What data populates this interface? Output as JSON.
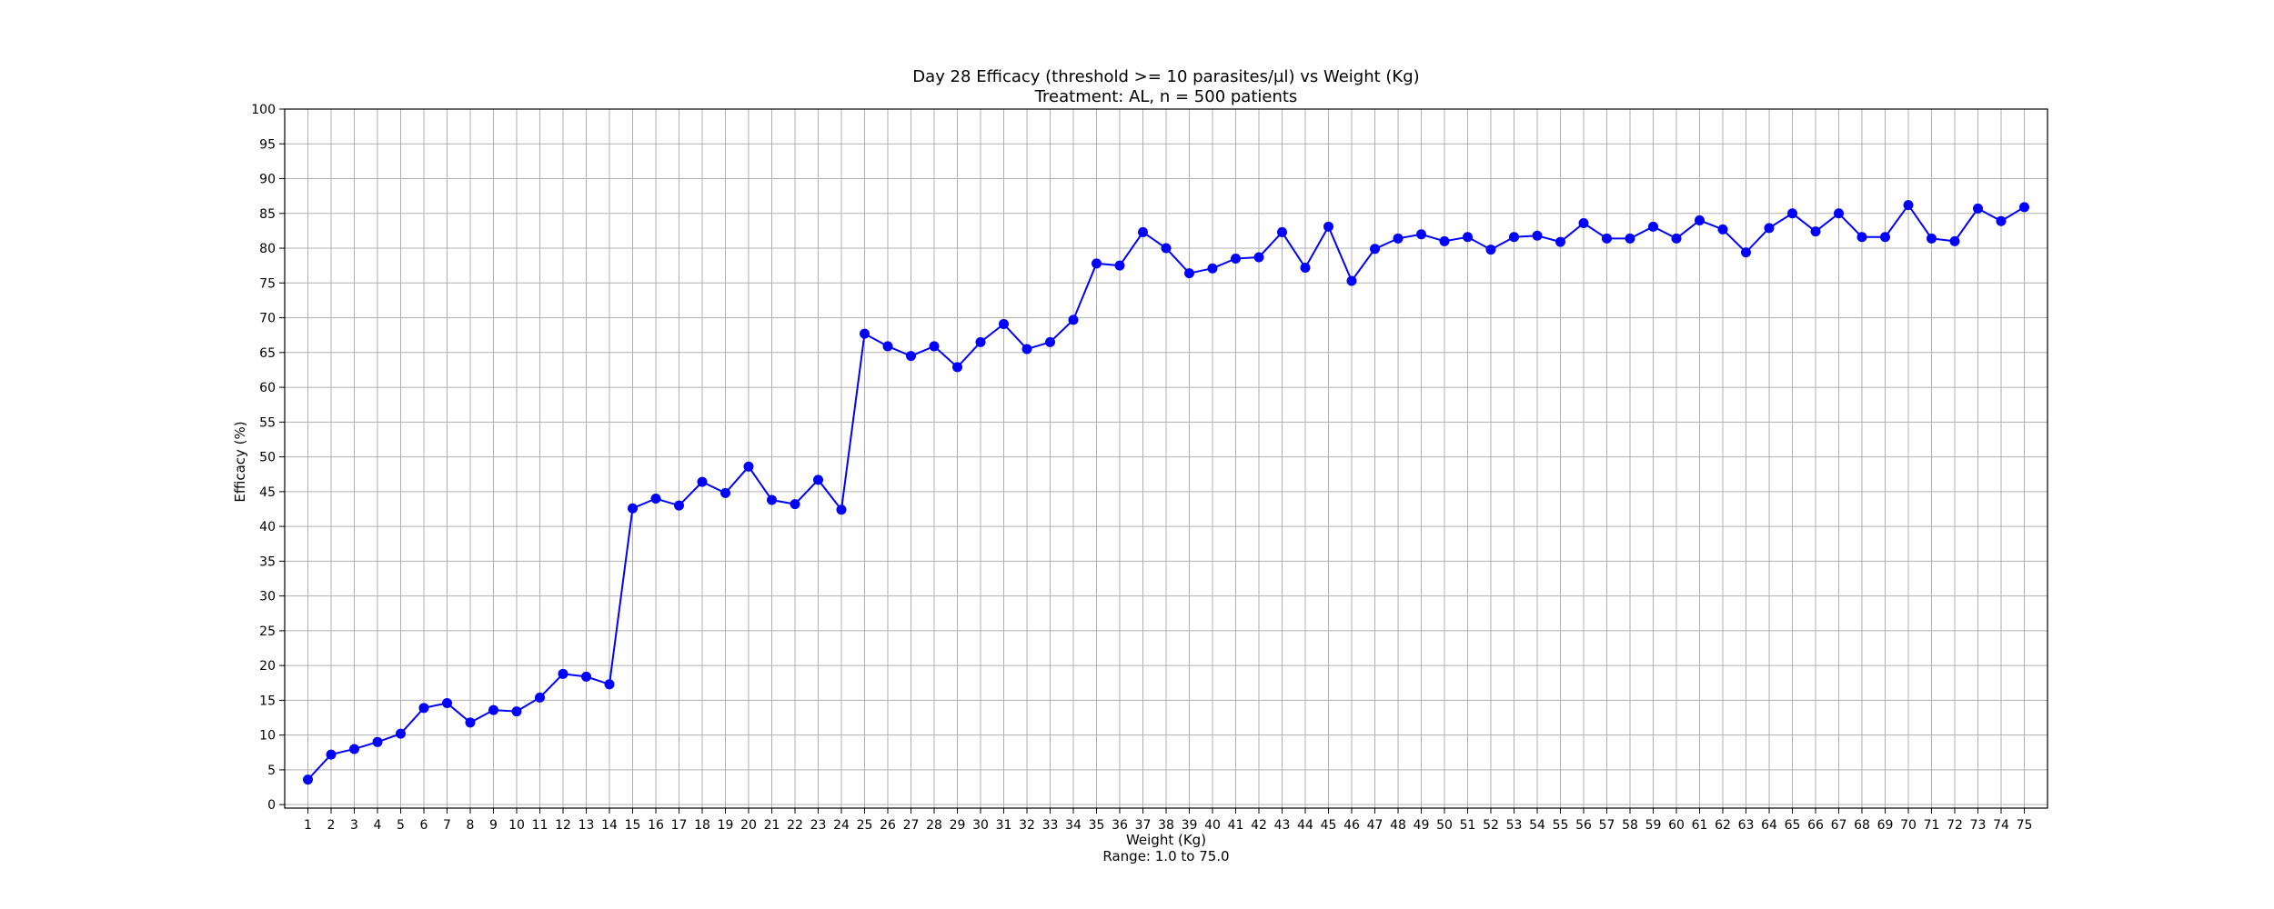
{
  "chart_data": {
    "type": "line",
    "title": "Day 28 Efficacy (threshold >= 10 parasites/µl) vs Weight (Kg)",
    "subtitle": "Treatment: AL, n = 500 patients",
    "xlabel": "Weight (Kg)",
    "xlabel_note": "Range: 1.0 to 75.0",
    "ylabel": "Efficacy (%)",
    "xlim": [
      0,
      76
    ],
    "ylim": [
      -0.5,
      100
    ],
    "x_ticks": [
      1,
      2,
      3,
      4,
      5,
      6,
      7,
      8,
      9,
      10,
      11,
      12,
      13,
      14,
      15,
      16,
      17,
      18,
      19,
      20,
      21,
      22,
      23,
      24,
      25,
      26,
      27,
      28,
      29,
      30,
      31,
      32,
      33,
      34,
      35,
      36,
      37,
      38,
      39,
      40,
      41,
      42,
      43,
      44,
      45,
      46,
      47,
      48,
      49,
      50,
      51,
      52,
      53,
      54,
      55,
      56,
      57,
      58,
      59,
      60,
      61,
      62,
      63,
      64,
      65,
      66,
      67,
      68,
      69,
      70,
      71,
      72,
      73,
      74,
      75
    ],
    "y_ticks": [
      0,
      5,
      10,
      15,
      20,
      25,
      30,
      35,
      40,
      45,
      50,
      55,
      60,
      65,
      70,
      75,
      80,
      85,
      90,
      95,
      100
    ],
    "grid": true,
    "series": [
      {
        "color": "#0000ff",
        "marker": "circle",
        "x": [
          1,
          2,
          3,
          4,
          5,
          6,
          7,
          8,
          9,
          10,
          11,
          12,
          13,
          14,
          15,
          16,
          17,
          18,
          19,
          20,
          21,
          22,
          23,
          24,
          25,
          26,
          27,
          28,
          29,
          30,
          31,
          32,
          33,
          34,
          35,
          36,
          37,
          38,
          39,
          40,
          41,
          42,
          43,
          44,
          45,
          46,
          47,
          48,
          49,
          50,
          51,
          52,
          53,
          54,
          55,
          56,
          57,
          58,
          59,
          60,
          61,
          62,
          63,
          64,
          65,
          66,
          67,
          68,
          69,
          70,
          71,
          72,
          73,
          74,
          75
        ],
        "values": [
          3.6,
          7.2,
          8.0,
          9.0,
          10.2,
          13.9,
          14.6,
          11.8,
          13.6,
          13.4,
          15.4,
          18.8,
          18.4,
          17.3,
          42.6,
          44.0,
          43.0,
          46.4,
          44.8,
          48.6,
          43.8,
          43.2,
          46.7,
          42.4,
          67.7,
          65.9,
          64.5,
          65.9,
          62.9,
          66.5,
          69.1,
          65.5,
          66.5,
          69.7,
          77.8,
          77.5,
          82.3,
          80.0,
          76.4,
          77.1,
          78.5,
          78.7,
          82.3,
          77.2,
          83.1,
          75.3,
          79.9,
          81.4,
          82.0,
          81.0,
          81.6,
          79.8,
          81.6,
          81.8,
          80.9,
          83.6,
          81.4,
          81.4,
          83.1,
          81.4,
          84.0,
          82.7,
          79.4,
          82.9,
          85.0,
          82.4,
          85.0,
          81.6,
          81.6,
          86.2,
          81.4,
          81.0,
          85.7,
          83.9,
          85.9
        ]
      }
    ]
  }
}
